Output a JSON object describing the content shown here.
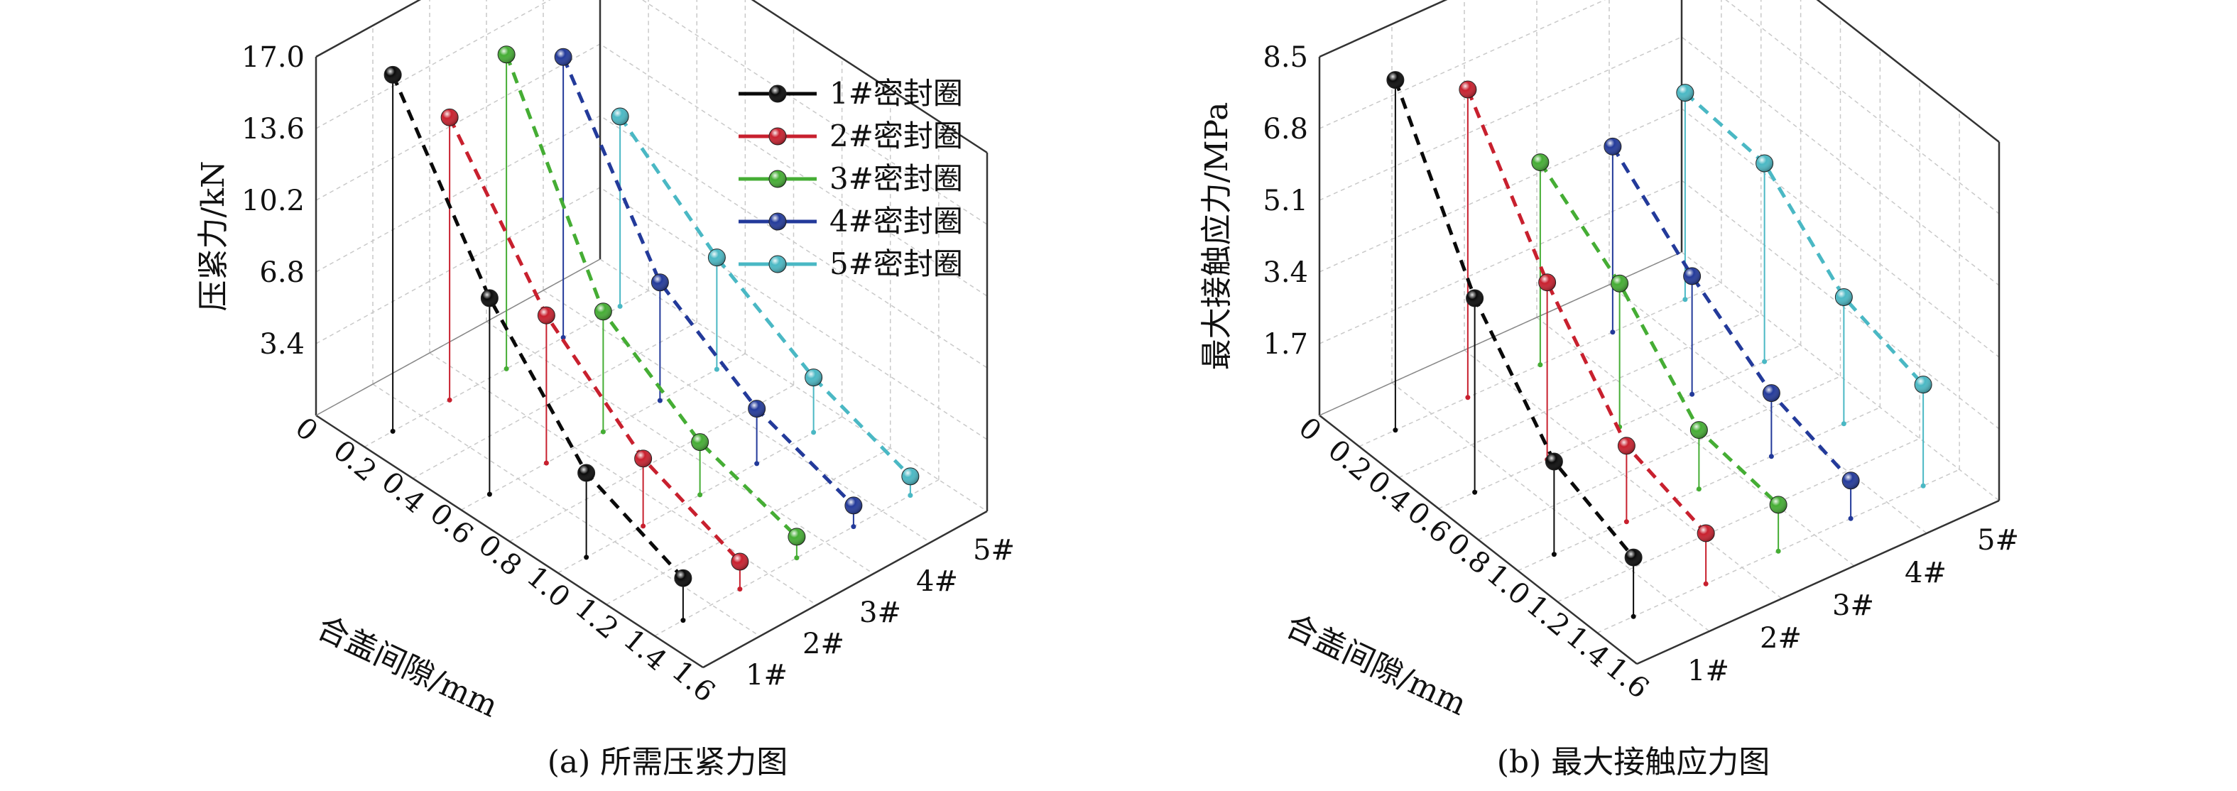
{
  "legend": [
    "1#密封圈",
    "2#密封圈",
    "3#密封圈",
    "4#密封圈",
    "5#密封圈"
  ],
  "series_colors": [
    "#0a0a0a",
    "#c8202e",
    "#45ad34",
    "#233a9a",
    "#4ab8c4"
  ],
  "chart_data": [
    {
      "type": "scatter-3d",
      "caption": "(a) 所需压紧力图",
      "xlabel": "合盖间隙/mm",
      "zlabel": "压紧力/kN",
      "x_ticks": [
        "0",
        "0.2",
        "0.4",
        "0.6",
        "0.8",
        "1.0",
        "1.2",
        "1.4",
        "1.6"
      ],
      "y_ticks": [
        "1#",
        "2#",
        "3#",
        "4#",
        "5#"
      ],
      "z_ticks": [
        "3.4",
        "6.8",
        "10.2",
        "13.6",
        "17.0"
      ],
      "xlim": [
        0,
        1.6
      ],
      "zlim": [
        0,
        17.0
      ],
      "x": [
        0.2,
        0.6,
        1.0,
        1.4
      ],
      "series": [
        {
          "name": "1#密封圈",
          "values": [
            16.9,
            9.3,
            4.0,
            2.0
          ]
        },
        {
          "name": "2#密封圈",
          "values": [
            13.4,
            7.0,
            3.2,
            1.3
          ]
        },
        {
          "name": "3#密封圈",
          "values": [
            14.9,
            5.7,
            2.5,
            1.0
          ]
        },
        {
          "name": "4#密封圈",
          "values": [
            13.3,
            5.6,
            2.6,
            1.0
          ]
        },
        {
          "name": "5#密封圈",
          "values": [
            9.0,
            5.3,
            2.6,
            0.9
          ]
        }
      ]
    },
    {
      "type": "scatter-3d",
      "caption": "(b) 最大接触应力图",
      "xlabel": "合盖间隙/mm",
      "zlabel": "最大接触应力/MPa",
      "x_ticks": [
        "0",
        "0.2",
        "0.4",
        "0.6",
        "0.8",
        "1.0",
        "1.2",
        "1.4",
        "1.6"
      ],
      "y_ticks": [
        "1#",
        "2#",
        "3#",
        "4#",
        "5#"
      ],
      "z_ticks": [
        "1.7",
        "3.4",
        "5.1",
        "6.8",
        "8.5"
      ],
      "xlim": [
        0,
        1.6
      ],
      "zlim": [
        0,
        8.5
      ],
      "x": [
        0.2,
        0.6,
        1.0,
        1.4
      ],
      "series": [
        {
          "name": "1#密封圈",
          "values": [
            8.3,
            4.6,
            2.2,
            1.4
          ]
        },
        {
          "name": "2#密封圈",
          "values": [
            7.3,
            4.2,
            1.8,
            1.2
          ]
        },
        {
          "name": "3#密封圈",
          "values": [
            4.8,
            3.4,
            1.4,
            1.1
          ]
        },
        {
          "name": "4#密封圈",
          "values": [
            4.4,
            2.8,
            1.5,
            0.9
          ]
        },
        {
          "name": "5#密封圈",
          "values": [
            4.9,
            4.7,
            3.0,
            2.4
          ]
        }
      ]
    }
  ]
}
